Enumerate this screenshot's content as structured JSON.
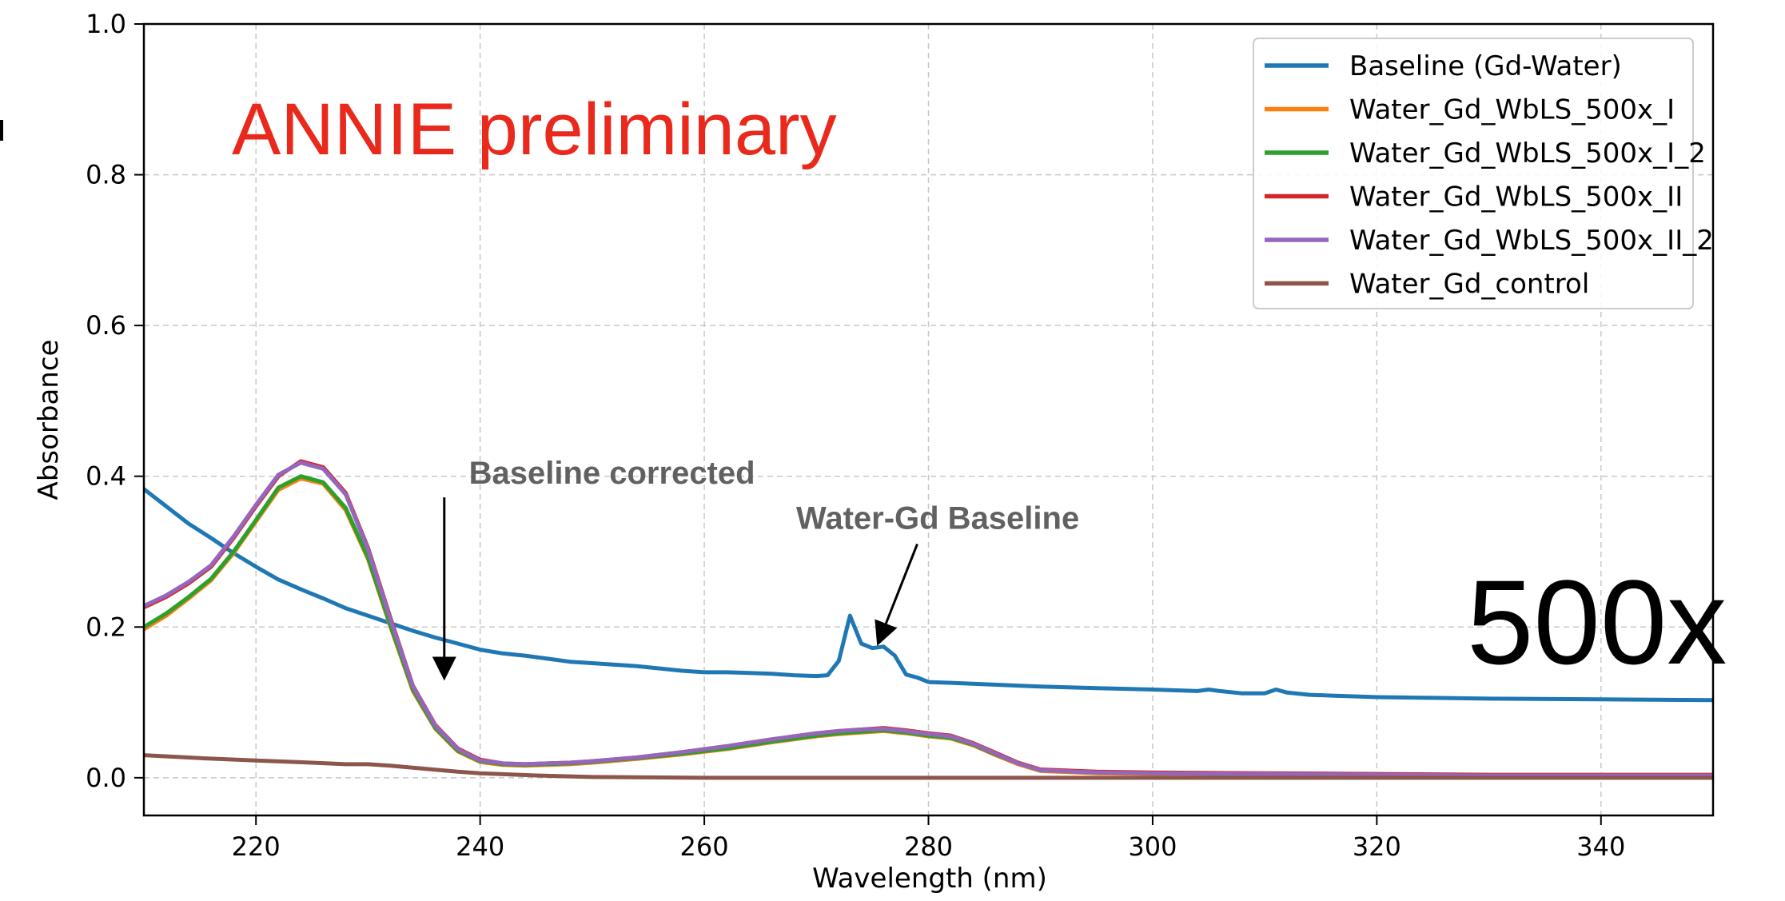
{
  "chart_data": {
    "type": "line",
    "title": "",
    "xlabel": "Wavelength (nm)",
    "ylabel": "Absorbance",
    "xlim": [
      210,
      350
    ],
    "ylim": [
      -0.05,
      1.0
    ],
    "xticks": [
      220,
      240,
      260,
      280,
      300,
      320,
      340
    ],
    "yticks": [
      0.0,
      0.2,
      0.4,
      0.6,
      0.8,
      1.0
    ],
    "xtick_labels": [
      "220",
      "240",
      "260",
      "280",
      "300",
      "320",
      "340"
    ],
    "ytick_labels": [
      "0.0",
      "0.2",
      "0.4",
      "0.6",
      "0.8",
      "1.0"
    ],
    "grid": true,
    "legend_position": "top-right",
    "series": [
      {
        "name": "Baseline (Gd-Water)",
        "color": "#1f77b4",
        "x": [
          210,
          212,
          214,
          216,
          218,
          220,
          222,
          224,
          226,
          228,
          230,
          232,
          234,
          236,
          238,
          240,
          242,
          244,
          246,
          248,
          250,
          252,
          254,
          256,
          258,
          260,
          262,
          264,
          266,
          268,
          270,
          271,
          272,
          273,
          274,
          275,
          276,
          277,
          278,
          279,
          280,
          282,
          285,
          290,
          295,
          300,
          304,
          305,
          306,
          308,
          310,
          311,
          312,
          314,
          316,
          320,
          325,
          330,
          340,
          350
        ],
        "y": [
          0.383,
          0.36,
          0.337,
          0.318,
          0.298,
          0.28,
          0.263,
          0.25,
          0.238,
          0.225,
          0.215,
          0.205,
          0.195,
          0.186,
          0.178,
          0.17,
          0.165,
          0.162,
          0.158,
          0.154,
          0.152,
          0.15,
          0.148,
          0.145,
          0.142,
          0.14,
          0.14,
          0.139,
          0.138,
          0.136,
          0.135,
          0.136,
          0.155,
          0.215,
          0.178,
          0.172,
          0.174,
          0.162,
          0.137,
          0.133,
          0.127,
          0.126,
          0.124,
          0.121,
          0.119,
          0.117,
          0.115,
          0.117,
          0.115,
          0.112,
          0.112,
          0.117,
          0.113,
          0.11,
          0.109,
          0.107,
          0.106,
          0.105,
          0.104,
          0.103
        ]
      },
      {
        "name": "Water_Gd_WbLS_500x_I",
        "color": "#ff7f0e",
        "x": [
          210,
          212,
          214,
          216,
          218,
          220,
          222,
          224,
          226,
          228,
          230,
          232,
          234,
          236,
          238,
          240,
          242,
          244,
          246,
          248,
          250,
          254,
          258,
          262,
          266,
          270,
          272,
          274,
          276,
          278,
          280,
          282,
          284,
          286,
          288,
          290,
          295,
          300,
          310,
          320,
          330,
          340,
          350
        ],
        "y": [
          0.197,
          0.215,
          0.238,
          0.262,
          0.298,
          0.34,
          0.382,
          0.397,
          0.39,
          0.355,
          0.29,
          0.2,
          0.115,
          0.065,
          0.035,
          0.021,
          0.017,
          0.016,
          0.017,
          0.018,
          0.02,
          0.025,
          0.031,
          0.038,
          0.047,
          0.055,
          0.058,
          0.06,
          0.062,
          0.059,
          0.055,
          0.052,
          0.043,
          0.03,
          0.018,
          0.009,
          0.006,
          0.005,
          0.004,
          0.003,
          0.002,
          0.002,
          0.002
        ]
      },
      {
        "name": "Water_Gd_WbLS_500x_I_2",
        "color": "#2ca02c",
        "x": [
          210,
          212,
          214,
          216,
          218,
          220,
          222,
          224,
          226,
          228,
          230,
          232,
          234,
          236,
          238,
          240,
          242,
          244,
          246,
          248,
          250,
          254,
          258,
          262,
          266,
          270,
          272,
          274,
          276,
          278,
          280,
          282,
          284,
          286,
          288,
          290,
          295,
          300,
          310,
          320,
          330,
          340,
          350
        ],
        "y": [
          0.2,
          0.218,
          0.24,
          0.264,
          0.3,
          0.342,
          0.385,
          0.4,
          0.392,
          0.358,
          0.292,
          0.202,
          0.117,
          0.066,
          0.036,
          0.022,
          0.018,
          0.017,
          0.018,
          0.019,
          0.021,
          0.026,
          0.032,
          0.039,
          0.048,
          0.056,
          0.059,
          0.061,
          0.063,
          0.06,
          0.056,
          0.053,
          0.044,
          0.031,
          0.019,
          0.01,
          0.007,
          0.006,
          0.005,
          0.004,
          0.003,
          0.003,
          0.003
        ]
      },
      {
        "name": "Water_Gd_WbLS_500x_II",
        "color": "#d62728",
        "x": [
          210,
          212,
          214,
          216,
          218,
          220,
          222,
          224,
          226,
          228,
          230,
          232,
          234,
          236,
          238,
          240,
          242,
          244,
          246,
          248,
          250,
          254,
          258,
          262,
          266,
          270,
          272,
          274,
          276,
          278,
          280,
          282,
          284,
          286,
          288,
          290,
          295,
          300,
          310,
          320,
          330,
          340,
          350
        ],
        "y": [
          0.226,
          0.24,
          0.258,
          0.28,
          0.318,
          0.36,
          0.4,
          0.42,
          0.412,
          0.378,
          0.305,
          0.212,
          0.122,
          0.07,
          0.039,
          0.024,
          0.019,
          0.018,
          0.019,
          0.02,
          0.022,
          0.027,
          0.034,
          0.042,
          0.051,
          0.059,
          0.062,
          0.064,
          0.066,
          0.063,
          0.059,
          0.056,
          0.046,
          0.033,
          0.02,
          0.011,
          0.008,
          0.007,
          0.006,
          0.005,
          0.004,
          0.004,
          0.004
        ]
      },
      {
        "name": "Water_Gd_WbLS_500x_II_2",
        "color": "#9467bd",
        "x": [
          210,
          212,
          214,
          216,
          218,
          220,
          222,
          224,
          226,
          228,
          230,
          232,
          234,
          236,
          238,
          240,
          242,
          244,
          246,
          248,
          250,
          254,
          258,
          262,
          266,
          270,
          272,
          274,
          276,
          278,
          280,
          282,
          284,
          286,
          288,
          290,
          295,
          300,
          310,
          320,
          330,
          340,
          350
        ],
        "y": [
          0.228,
          0.242,
          0.26,
          0.282,
          0.32,
          0.362,
          0.402,
          0.418,
          0.41,
          0.376,
          0.303,
          0.21,
          0.121,
          0.069,
          0.038,
          0.023,
          0.019,
          0.018,
          0.019,
          0.02,
          0.022,
          0.027,
          0.034,
          0.042,
          0.051,
          0.059,
          0.062,
          0.064,
          0.065,
          0.062,
          0.058,
          0.055,
          0.045,
          0.032,
          0.019,
          0.01,
          0.007,
          0.006,
          0.005,
          0.004,
          0.003,
          0.003,
          0.003
        ]
      },
      {
        "name": "Water_Gd_control",
        "color": "#8c564b",
        "x": [
          210,
          215,
          220,
          225,
          228,
          230,
          232,
          235,
          238,
          240,
          245,
          250,
          260,
          270,
          280,
          300,
          320,
          350
        ],
        "y": [
          0.03,
          0.026,
          0.023,
          0.02,
          0.018,
          0.018,
          0.016,
          0.012,
          0.008,
          0.006,
          0.003,
          0.001,
          0.0,
          0.0,
          0.0,
          0.0,
          0.0,
          0.0
        ]
      }
    ],
    "annotations": [
      {
        "text": "Baseline corrected",
        "text_at": [
          239.0,
          0.39
        ],
        "arrow_from": [
          236.8,
          0.372
        ],
        "arrow_to": [
          236.8,
          0.132
        ]
      },
      {
        "text": "Water-Gd Baseline",
        "text_at": [
          268.2,
          0.33
        ],
        "arrow_from": [
          279.0,
          0.31
        ],
        "arrow_to": [
          275.5,
          0.178
        ]
      }
    ],
    "overlay_texts": {
      "watermark": "ANNIE preliminary",
      "concentration": "500x"
    }
  }
}
